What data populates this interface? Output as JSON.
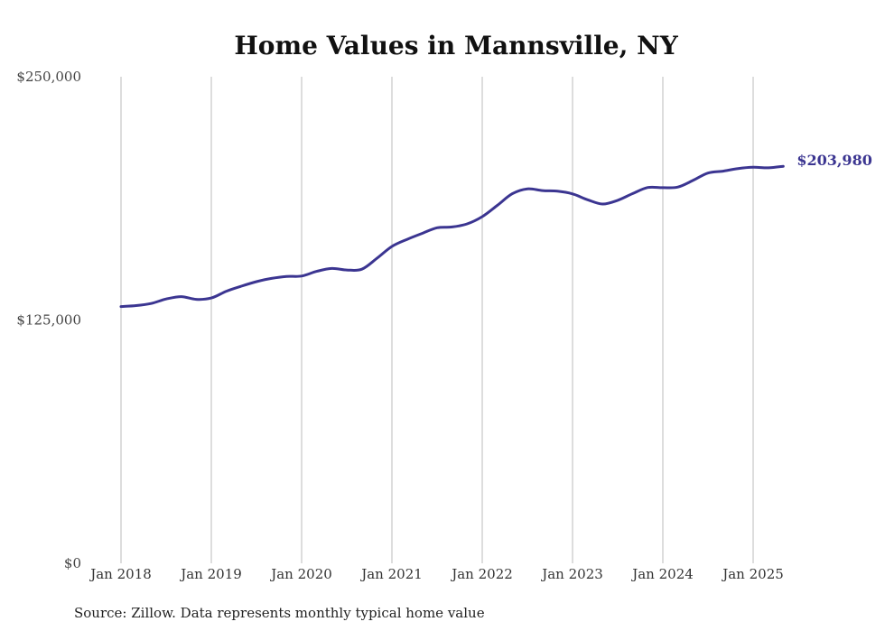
{
  "chart_data": {
    "type": "line",
    "title": "Home Values in Mannsville, NY",
    "xlabel": "",
    "ylabel": "",
    "ylim": [
      0,
      250000
    ],
    "y_ticks": [
      {
        "value": 0,
        "label": "$0"
      },
      {
        "value": 125000,
        "label": "$125,000"
      },
      {
        "value": 250000,
        "label": "$250,000"
      }
    ],
    "x_ticks": [
      {
        "value": 2018,
        "label": "Jan 2018"
      },
      {
        "value": 2019,
        "label": "Jan 2019"
      },
      {
        "value": 2020,
        "label": "Jan 2020"
      },
      {
        "value": 2021,
        "label": "Jan 2021"
      },
      {
        "value": 2022,
        "label": "Jan 2022"
      },
      {
        "value": 2023,
        "label": "Jan 2023"
      },
      {
        "value": 2024,
        "label": "Jan 2024"
      },
      {
        "value": 2025,
        "label": "Jan 2025"
      }
    ],
    "grid": "vertical",
    "series": [
      {
        "color": "#3b3591",
        "end_label": "$203,980",
        "points": [
          [
            "2018-01",
            131900
          ],
          [
            "2018-03",
            132400
          ],
          [
            "2018-05",
            133500
          ],
          [
            "2018-07",
            135800
          ],
          [
            "2018-09",
            137000
          ],
          [
            "2018-11",
            135600
          ],
          [
            "2019-01",
            136300
          ],
          [
            "2019-03",
            139800
          ],
          [
            "2019-05",
            142400
          ],
          [
            "2019-07",
            144700
          ],
          [
            "2019-09",
            146400
          ],
          [
            "2019-11",
            147400
          ],
          [
            "2020-01",
            147600
          ],
          [
            "2020-03",
            150000
          ],
          [
            "2020-05",
            151500
          ],
          [
            "2020-07",
            150700
          ],
          [
            "2020-09",
            151100
          ],
          [
            "2020-11",
            156700
          ],
          [
            "2021-01",
            162800
          ],
          [
            "2021-03",
            166400
          ],
          [
            "2021-05",
            169500
          ],
          [
            "2021-07",
            172400
          ],
          [
            "2021-09",
            172800
          ],
          [
            "2021-11",
            174400
          ],
          [
            "2022-01",
            178100
          ],
          [
            "2022-03",
            183900
          ],
          [
            "2022-05",
            189900
          ],
          [
            "2022-07",
            192400
          ],
          [
            "2022-09",
            191500
          ],
          [
            "2022-11",
            191200
          ],
          [
            "2023-01",
            189800
          ],
          [
            "2023-03",
            186800
          ],
          [
            "2023-05",
            184600
          ],
          [
            "2023-07",
            186500
          ],
          [
            "2023-09",
            190000
          ],
          [
            "2023-11",
            193100
          ],
          [
            "2024-01",
            193000
          ],
          [
            "2024-03",
            193300
          ],
          [
            "2024-05",
            196700
          ],
          [
            "2024-07",
            200500
          ],
          [
            "2024-09",
            201500
          ],
          [
            "2024-11",
            202800
          ],
          [
            "2025-01",
            203500
          ],
          [
            "2025-03",
            203200
          ],
          [
            "2025-05",
            203980
          ]
        ]
      }
    ],
    "source": "Source: Zillow. Data represents monthly typical home value"
  }
}
